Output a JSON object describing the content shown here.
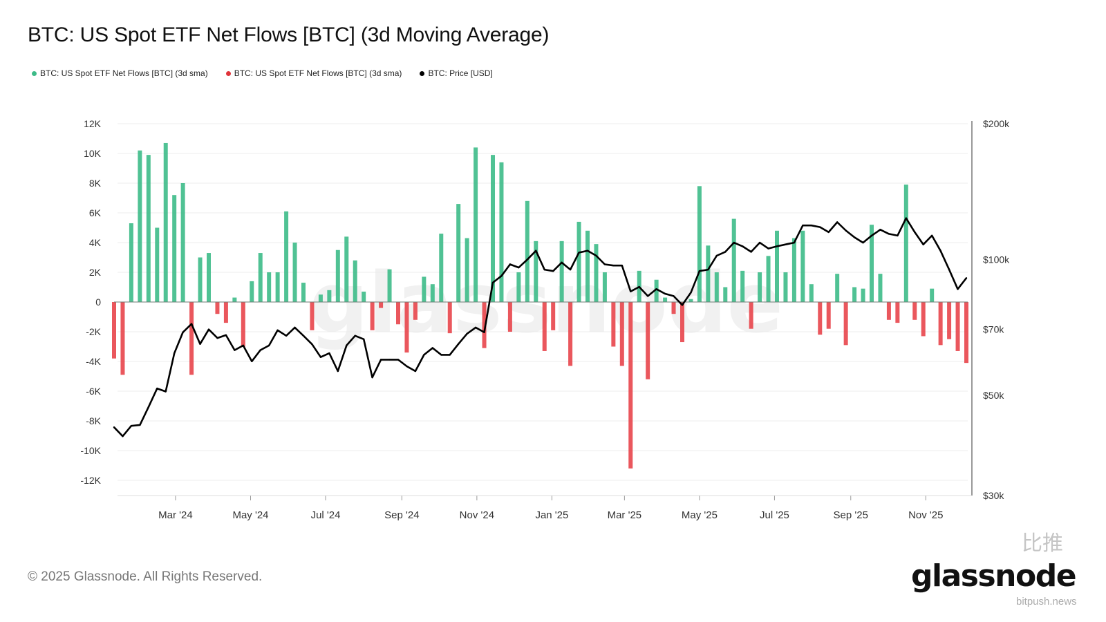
{
  "title": "BTC: US Spot ETF Net Flows [BTC] (3d Moving Average)",
  "legend": [
    {
      "label": "BTC: US Spot ETF Net Flows [BTC] (3d sma)",
      "color": "#3dbb88"
    },
    {
      "label": "BTC: US Spot ETF Net Flows [BTC] (3d sma)",
      "color": "#e0343a"
    },
    {
      "label": "BTC: Price [USD]",
      "color": "#000000"
    }
  ],
  "watermark": "glassnode",
  "footer": "© 2025 Glassnode. All Rights Reserved.",
  "logo": "glassnode",
  "overlay_watermark": {
    "cn": "比推",
    "en": "bitpush.news"
  },
  "chart_data": {
    "type": "bar+line",
    "title": "BTC: US Spot ETF Net Flows [BTC] (3d Moving Average)",
    "grid": true,
    "legend_position": "top-left",
    "colors": {
      "positive": "#3dbb88",
      "negative": "#e8454b",
      "price": "#000000"
    },
    "x_ticks": [
      {
        "date": "2024-03-01",
        "label": "Mar '24"
      },
      {
        "date": "2024-05-01",
        "label": "May '24"
      },
      {
        "date": "2024-07-01",
        "label": "Jul '24"
      },
      {
        "date": "2024-09-01",
        "label": "Sep '24"
      },
      {
        "date": "2024-11-01",
        "label": "Nov '24"
      },
      {
        "date": "2025-01-01",
        "label": "Jan '25"
      },
      {
        "date": "2025-03-01",
        "label": "Mar '25"
      },
      {
        "date": "2025-05-01",
        "label": "May '25"
      },
      {
        "date": "2025-07-01",
        "label": "Jul '25"
      },
      {
        "date": "2025-09-01",
        "label": "Sep '25"
      },
      {
        "date": "2025-11-01",
        "label": "Nov '25"
      }
    ],
    "xlim": [
      "2024-01-11",
      "2025-12-04"
    ],
    "y_left": {
      "ylim": [
        -12000,
        12000
      ],
      "ticks": [
        {
          "value": 12000,
          "label": "12K"
        },
        {
          "value": 10000,
          "label": "10K"
        },
        {
          "value": 8000,
          "label": "8K"
        },
        {
          "value": 6000,
          "label": "6K"
        },
        {
          "value": 4000,
          "label": "4K"
        },
        {
          "value": 2000,
          "label": "2K"
        },
        {
          "value": 0,
          "label": "0"
        },
        {
          "value": -2000,
          "label": "-2K"
        },
        {
          "value": -4000,
          "label": "-4K"
        },
        {
          "value": -6000,
          "label": "-6K"
        },
        {
          "value": -8000,
          "label": "-8K"
        },
        {
          "value": -10000,
          "label": "-10K"
        },
        {
          "value": -12000,
          "label": "-12K"
        }
      ]
    },
    "y_right": {
      "scale": "log",
      "ylim": [
        30000,
        200000
      ],
      "ticks": [
        {
          "value": 200000,
          "label": "$200k"
        },
        {
          "value": 100000,
          "label": "$100k"
        },
        {
          "value": 70000,
          "label": "$70k"
        },
        {
          "value": 50000,
          "label": "$50k"
        },
        {
          "value": 30000,
          "label": "$30k"
        }
      ]
    },
    "x": [
      "2024-01-11",
      "2024-01-18",
      "2024-01-25",
      "2024-02-01",
      "2024-02-08",
      "2024-02-15",
      "2024-02-22",
      "2024-02-29",
      "2024-03-07",
      "2024-03-14",
      "2024-03-21",
      "2024-03-28",
      "2024-04-04",
      "2024-04-11",
      "2024-04-18",
      "2024-04-25",
      "2024-05-02",
      "2024-05-09",
      "2024-05-16",
      "2024-05-23",
      "2024-05-30",
      "2024-06-06",
      "2024-06-13",
      "2024-06-20",
      "2024-06-27",
      "2024-07-04",
      "2024-07-11",
      "2024-07-18",
      "2024-07-25",
      "2024-08-01",
      "2024-08-08",
      "2024-08-15",
      "2024-08-22",
      "2024-08-29",
      "2024-09-05",
      "2024-09-12",
      "2024-09-19",
      "2024-09-26",
      "2024-10-03",
      "2024-10-10",
      "2024-10-17",
      "2024-10-24",
      "2024-10-31",
      "2024-11-07",
      "2024-11-14",
      "2024-11-21",
      "2024-11-28",
      "2024-12-05",
      "2024-12-12",
      "2024-12-19",
      "2024-12-26",
      "2025-01-02",
      "2025-01-09",
      "2025-01-16",
      "2025-01-23",
      "2025-01-30",
      "2025-02-06",
      "2025-02-13",
      "2025-02-20",
      "2025-02-27",
      "2025-03-06",
      "2025-03-13",
      "2025-03-20",
      "2025-03-27",
      "2025-04-03",
      "2025-04-10",
      "2025-04-17",
      "2025-04-24",
      "2025-05-01",
      "2025-05-08",
      "2025-05-15",
      "2025-05-22",
      "2025-05-29",
      "2025-06-05",
      "2025-06-12",
      "2025-06-19",
      "2025-06-26",
      "2025-07-03",
      "2025-07-10",
      "2025-07-17",
      "2025-07-24",
      "2025-07-31",
      "2025-08-07",
      "2025-08-14",
      "2025-08-21",
      "2025-08-28",
      "2025-09-04",
      "2025-09-11",
      "2025-09-18",
      "2025-09-25",
      "2025-10-02",
      "2025-10-09",
      "2025-10-16",
      "2025-10-23",
      "2025-10-30",
      "2025-11-06",
      "2025-11-13",
      "2025-11-20",
      "2025-11-27",
      "2025-12-04"
    ],
    "series": [
      {
        "name": "BTC: US Spot ETF Net Flows [BTC] (3d sma)",
        "axis": "left",
        "type": "bar",
        "values": [
          -3800,
          -4900,
          5300,
          10200,
          9900,
          5000,
          10700,
          7200,
          8000,
          -4900,
          3000,
          3300,
          -800,
          -1400,
          300,
          -3000,
          1400,
          3300,
          2000,
          2000,
          6100,
          4000,
          1300,
          -1900,
          500,
          800,
          3500,
          4400,
          2800,
          700,
          -1900,
          -400,
          2200,
          -1500,
          -3400,
          -1200,
          1700,
          1200,
          4600,
          -2100,
          6600,
          4300,
          10400,
          -3100,
          9900,
          9400,
          -2000,
          2000,
          6800,
          4100,
          -3300,
          -1900,
          4100,
          -4300,
          5400,
          4800,
          3900,
          2000,
          -3000,
          -4300,
          -11200,
          2100,
          -5200,
          1500,
          300,
          -800,
          -2700,
          200,
          7800,
          3800,
          2000,
          1000,
          5600,
          2100,
          -1800,
          2000,
          3100,
          4800,
          2000,
          4300,
          4800,
          1200,
          -2200,
          -1800,
          1900,
          -2900,
          1000,
          900,
          5200,
          1900,
          -1200,
          -1400,
          7900,
          -1200,
          -2300,
          900,
          -2900,
          -2500,
          -3300,
          -4100
        ]
      },
      {
        "name": "BTC: Price [USD]",
        "axis": "right",
        "type": "line",
        "values": [
          42500,
          40600,
          42800,
          43000,
          47100,
          51800,
          51000,
          62000,
          69000,
          72000,
          65000,
          70000,
          67000,
          68000,
          63000,
          64500,
          59500,
          63000,
          64500,
          69700,
          67800,
          70700,
          67800,
          64900,
          60800,
          62000,
          56600,
          64500,
          67800,
          66600,
          54800,
          60000,
          60000,
          60000,
          58000,
          56600,
          61500,
          63700,
          61500,
          61500,
          65000,
          68500,
          70700,
          69000,
          88900,
          92000,
          97600,
          96000,
          100000,
          104600,
          95000,
          94300,
          98500,
          95000,
          103600,
          104600,
          102000,
          97600,
          97000,
          97000,
          85000,
          87000,
          83000,
          86000,
          84000,
          83000,
          79300,
          84500,
          94300,
          95000,
          102000,
          104000,
          109000,
          107000,
          104000,
          109000,
          105800,
          107000,
          108000,
          109000,
          119000,
          119000,
          118000,
          115000,
          121000,
          116000,
          112000,
          109000,
          113000,
          116500,
          114000,
          113000,
          123500,
          115000,
          108000,
          113000,
          104600,
          95000,
          86000,
          91000
        ]
      }
    ]
  }
}
